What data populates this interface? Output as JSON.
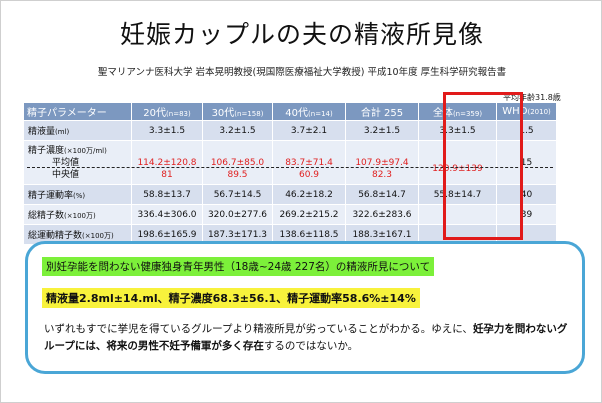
{
  "title": "妊娠カップルの夫の精液所見像",
  "subtitle": {
    "main": "聖マリアンナ医科大学  岩本晃明教授(現国際医療福祉大学教授) 平成10年度  厚生科学研究報告書"
  },
  "age_note": "平均年齢31.8歳",
  "table": {
    "headers": [
      {
        "label": "精子パラメーター",
        "n": ""
      },
      {
        "label": "20代",
        "n": "(n=83)"
      },
      {
        "label": "30代",
        "n": "(n=158)"
      },
      {
        "label": "40代",
        "n": "(n=14)"
      },
      {
        "label": "合計 255",
        "n": ""
      },
      {
        "label": "全体",
        "n": "(n=359)"
      },
      {
        "label": "WHO",
        "n": "(2010)"
      }
    ],
    "rows": {
      "volume": {
        "label": "精液量",
        "unit": "(ml)",
        "cells": [
          "3.3±1.5",
          "3.2±1.5",
          "3.7±2.1",
          "3.2±1.5",
          "3.3±1.5",
          "1.5"
        ]
      },
      "concentration": {
        "label": "精子濃度",
        "unit": "(×100万/ml)",
        "sub_mean": "平均値",
        "sub_median": "中央値",
        "mean": [
          "114.2±120.8",
          "106.7±85.0",
          "83.7±71.4",
          "107.9±97.4",
          "120.9±139"
        ],
        "median": [
          "81",
          "89.5",
          "60.9",
          "82.3",
          ""
        ],
        "who": "15"
      },
      "motility": {
        "label": "精子運動率",
        "unit": "(%)",
        "cells": [
          "58.8±13.7",
          "56.7±14.5",
          "46.2±18.2",
          "56.8±14.7",
          "55.8±14.7",
          "40"
        ]
      },
      "total_count": {
        "label": "総精子数",
        "unit": "(×100万)",
        "cells": [
          "336.4±306.0",
          "320.0±277.6",
          "269.2±215.2",
          "322.6±283.6",
          "",
          "39"
        ]
      },
      "total_motile": {
        "label": "総運動精子数",
        "unit": "(×100万)",
        "cells": [
          "198.6±165.9",
          "187.3±171.3",
          "138.6±118.5",
          "188.3±167.1",
          "",
          ""
        ]
      }
    }
  },
  "callout": {
    "heading": "別妊孕能を問わない健康独身青年男性（18歳~24歳  227名）の精液所見について",
    "stats": "精液量2.8ml±14.ml、精子濃度68.3±56.1、精子運動率58.6%±14%",
    "body_plain_1": "いずれもすでに挙児を得ているグループより精液所見が劣っていることがわかる。ゆえに、",
    "body_bold_1": "妊孕力を問わないグループには、将来の男性不妊予備軍が多く存在",
    "body_plain_2": "するのではないか。"
  },
  "colors": {
    "header_bg": "#7c98c0",
    "row_bg": "#d7dfee",
    "row_alt_bg": "#e9eef7",
    "highlight_red": "#e11a1a",
    "callout_border": "#4aa6d6",
    "green_highlight": "#7cf03a",
    "yellow_highlight": "#f8f23c",
    "red_text": "#e02020"
  }
}
